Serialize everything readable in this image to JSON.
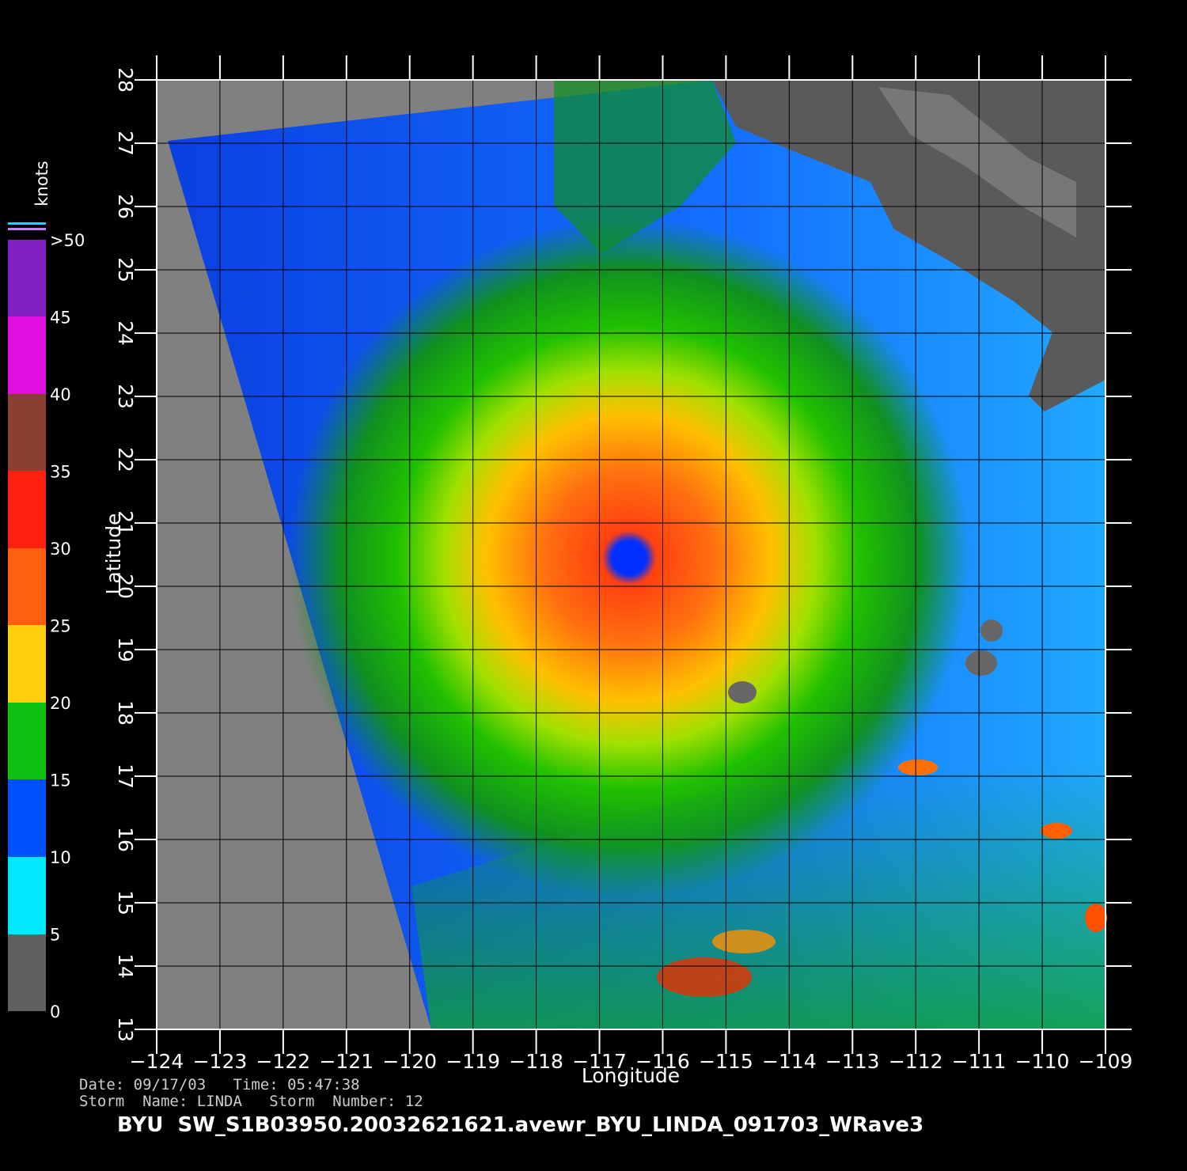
{
  "map": {
    "xlabel": "Longitude",
    "ylabel": "Latitude",
    "xlim": [
      -124,
      -109
    ],
    "ylim": [
      13,
      28
    ],
    "xticks": [
      {
        "value": -124,
        "label": "−124"
      },
      {
        "value": -123,
        "label": "−123"
      },
      {
        "value": -122,
        "label": "−122"
      },
      {
        "value": -121,
        "label": "−121"
      },
      {
        "value": -120,
        "label": "−120"
      },
      {
        "value": -119,
        "label": "−119"
      },
      {
        "value": -118,
        "label": "−118"
      },
      {
        "value": -117,
        "label": "−117"
      },
      {
        "value": -116,
        "label": "−116"
      },
      {
        "value": -115,
        "label": "−115"
      },
      {
        "value": -114,
        "label": "−114"
      },
      {
        "value": -113,
        "label": "−113"
      },
      {
        "value": -112,
        "label": "−112"
      },
      {
        "value": -111,
        "label": "−111"
      },
      {
        "value": -110,
        "label": "−110"
      },
      {
        "value": -109,
        "label": "−109"
      }
    ],
    "yticks": [
      13,
      14,
      15,
      16,
      17,
      18,
      19,
      20,
      21,
      22,
      23,
      24,
      25,
      26,
      27,
      28
    ]
  },
  "colorbar": {
    "title": "knots",
    "lim": [
      0,
      50
    ],
    "ticks": [
      0,
      5,
      10,
      15,
      20,
      25,
      30,
      35,
      40,
      45,
      {
        "value": 50,
        "label": ">50"
      }
    ]
  },
  "info": {
    "date_line": "Date: 09/17/03   Time: 05:47:38",
    "storm_line": "Storm  Name: LINDA   Storm  Number: 12",
    "file_line": "BYU  SW_S1B03950.20032621621.avewr_BYU_LINDA_091703_WRave3"
  }
}
